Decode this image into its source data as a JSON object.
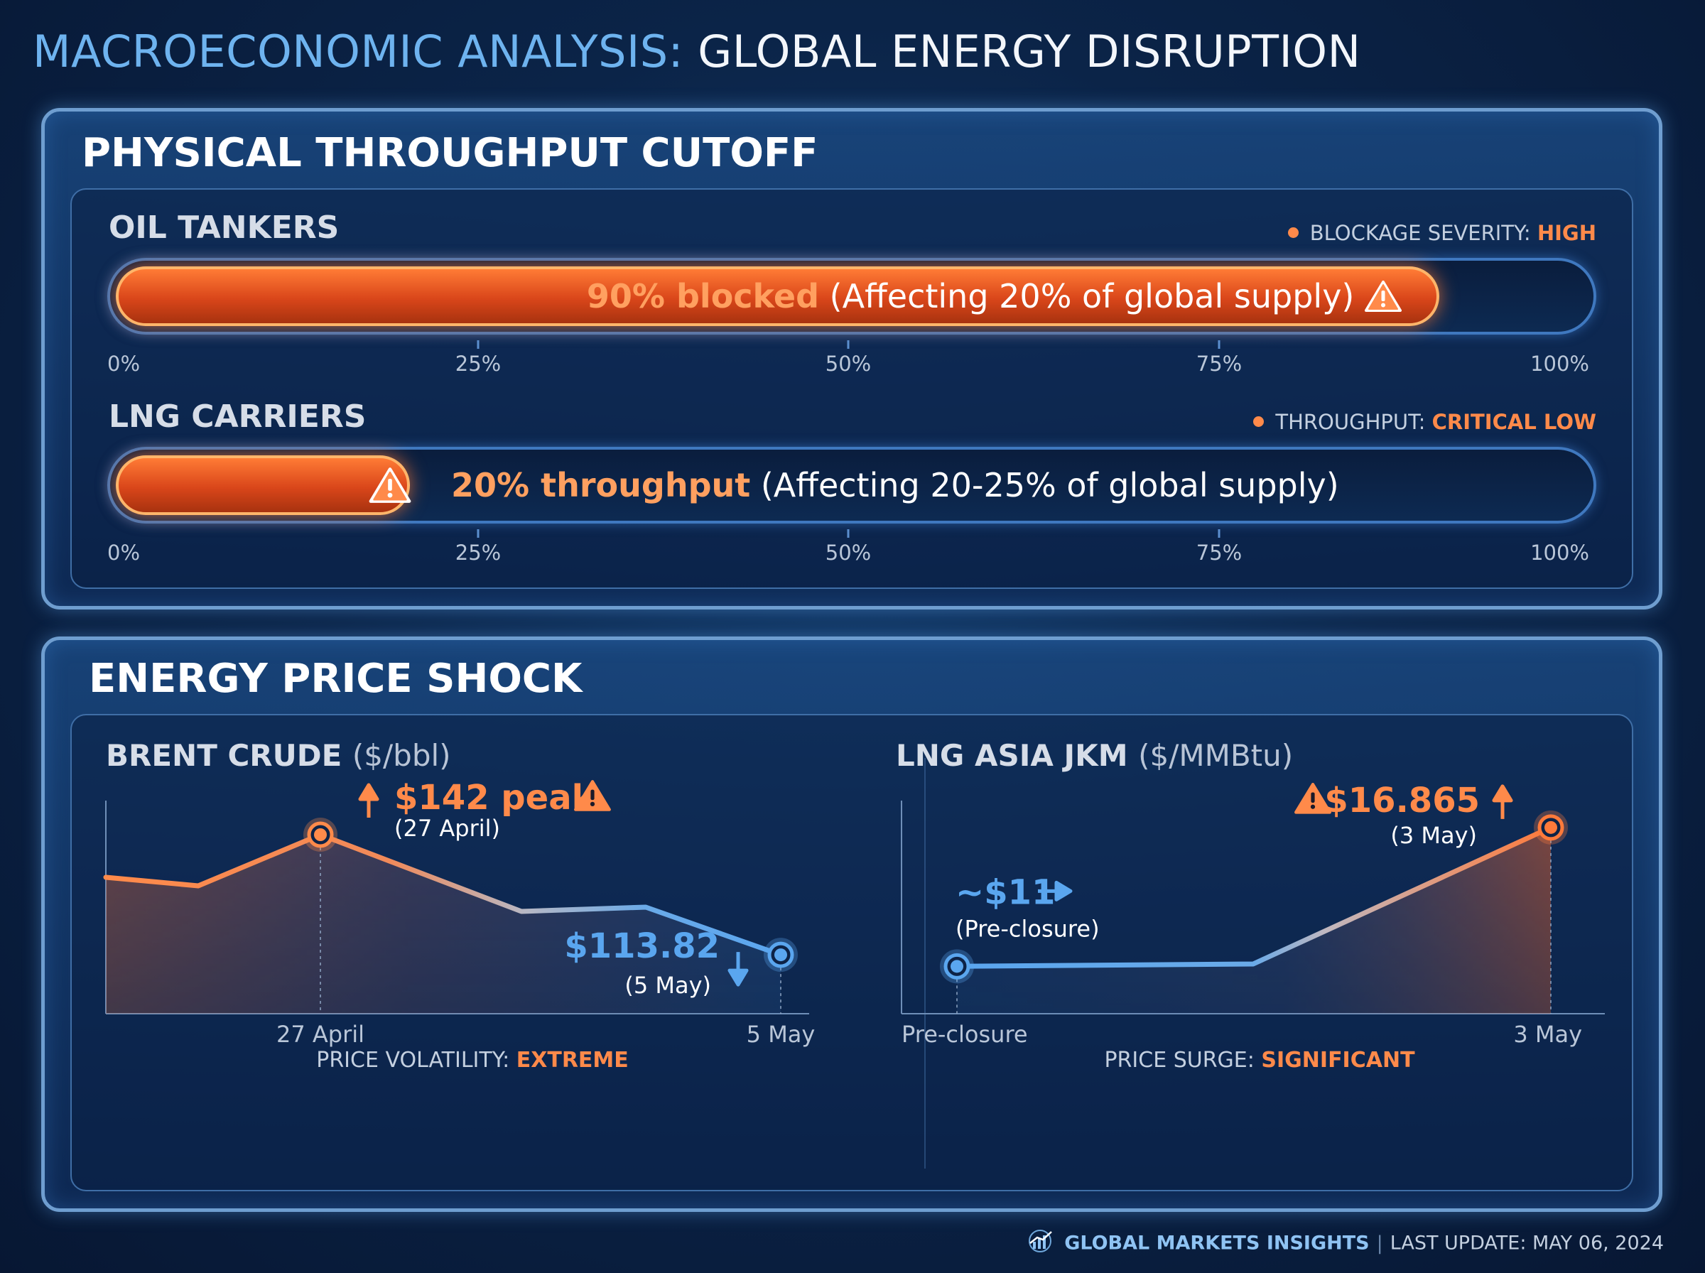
{
  "title": {
    "accent": "MACROECONOMIC ANALYSIS:",
    "main": "GLOBAL ENERGY DISRUPTION"
  },
  "throughput": {
    "heading": "PHYSICAL THROUGHPUT CUTOFF",
    "rows": [
      {
        "label": "OIL TANKERS",
        "status_label": "BLOCKAGE SEVERITY:",
        "status_value": "HIGH",
        "value_pct": 90,
        "bar_value": "90% blocked",
        "bar_note": "(Affecting 20% of global supply)",
        "ticks": [
          "0%",
          "25%",
          "50%",
          "75%",
          "100%"
        ]
      },
      {
        "label": "LNG CARRIERS",
        "status_label": "THROUGHPUT:",
        "status_value": "CRITICAL LOW",
        "value_pct": 20,
        "bar_value": "20% throughput",
        "bar_note": "(Affecting 20-25% of global supply)",
        "ticks": [
          "0%",
          "25%",
          "50%",
          "75%",
          "100%"
        ]
      }
    ]
  },
  "price": {
    "heading": "ENERGY PRICE SHOCK",
    "brent": {
      "title": "BRENT CRUDE",
      "unit": "($/bbl)",
      "peak_label": "$142 peak",
      "peak_date": "(27 April)",
      "end_label": "$113.82",
      "end_date": "(5 May)",
      "x_labels": [
        "27 April",
        "5 May"
      ],
      "footer_label": "PRICE VOLATILITY:",
      "footer_value": "EXTREME"
    },
    "jkm": {
      "title": "LNG ASIA JKM",
      "unit": "($/MMBtu)",
      "start_label": "~$11",
      "start_date": "(Pre-closure)",
      "end_label": "$16.865",
      "end_date": "(3 May)",
      "x_labels": [
        "Pre-closure",
        "3 May"
      ],
      "footer_label": "PRICE SURGE:",
      "footer_value": "SIGNIFICANT"
    }
  },
  "chart_data": [
    {
      "type": "bar",
      "categories": [
        "OIL TANKERS",
        "LNG CARRIERS"
      ],
      "series": [
        {
          "name": "",
          "values": [
            90,
            20
          ]
        }
      ],
      "xlim": [
        0,
        100
      ],
      "annotations": [
        "90% blocked (Affecting 20% of global supply)",
        "20% throughput (Affecting 20-25% of global supply)"
      ]
    },
    {
      "type": "area",
      "title": "BRENT CRUDE ($/bbl)",
      "x": [
        0,
        1,
        2,
        3,
        4,
        5
      ],
      "values": [
        132,
        130,
        142,
        124,
        125,
        113.82
      ],
      "x_tick_labels": {
        "2": "27 April",
        "5": "5 May"
      },
      "ylim": [
        100,
        150
      ],
      "highlight": [
        {
          "index": 2,
          "value": 142,
          "label": "$142 peak"
        },
        {
          "index": 5,
          "value": 113.82,
          "label": "$113.82"
        }
      ]
    },
    {
      "type": "area",
      "title": "LNG ASIA JKM ($/MMBtu)",
      "x": [
        0,
        1,
        2
      ],
      "values": [
        11,
        11.1,
        16.865
      ],
      "x_tick_labels": {
        "0": "Pre-closure",
        "2": "3 May"
      },
      "ylim": [
        9,
        18
      ],
      "highlight": [
        {
          "index": 0,
          "value": 11,
          "label": "~$11"
        },
        {
          "index": 2,
          "value": 16.865,
          "label": "$16.865"
        }
      ]
    }
  ],
  "footer": {
    "brand": "GLOBAL MARKETS INSIGHTS",
    "update": "LAST UPDATE: MAY 06, 2024"
  },
  "colors": {
    "accent_blue": "#6eb3ef",
    "hot": "#ff8a4a",
    "cool_line": "#5aa6ef"
  },
  "icons": [
    "warning-icon",
    "arrow-up-icon",
    "arrow-down-icon",
    "arrow-right-icon",
    "chart-logo-icon"
  ]
}
